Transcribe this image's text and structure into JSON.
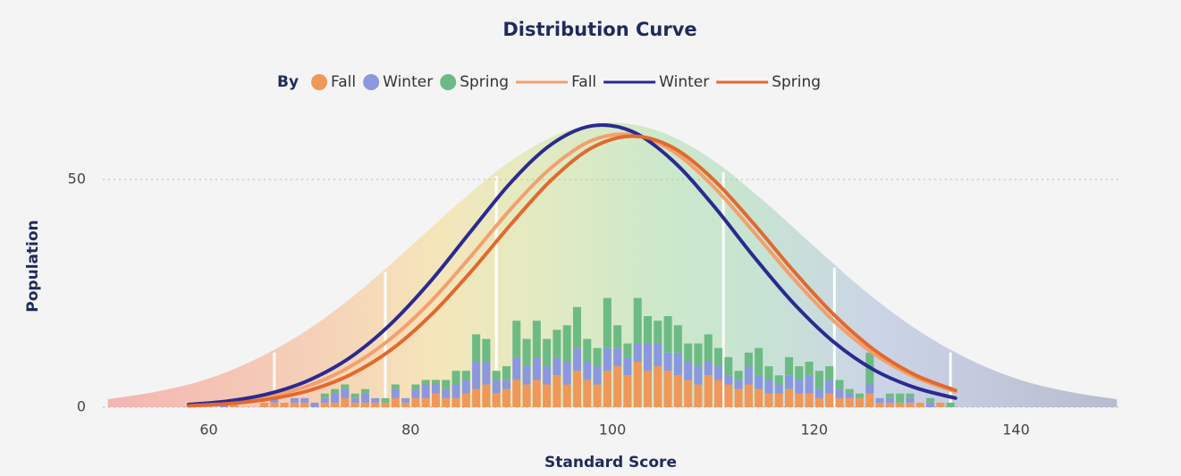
{
  "chart_data": {
    "type": "histogram",
    "title": "Distribution Curve",
    "x_label": "Standard Score",
    "y_label": "Population",
    "legend_title": "By",
    "xlim": [
      49.5,
      150.5
    ],
    "ylim": [
      0,
      65
    ],
    "xticks": [
      60,
      80,
      100,
      120,
      140
    ],
    "yticks": [
      0,
      50
    ],
    "grid": true,
    "bins": [
      58,
      59,
      60,
      61,
      62,
      63,
      64,
      65,
      66,
      67,
      68,
      69,
      70,
      71,
      72,
      73,
      74,
      75,
      76,
      77,
      78,
      79,
      80,
      81,
      82,
      83,
      84,
      85,
      86,
      87,
      88,
      89,
      90,
      91,
      92,
      93,
      94,
      95,
      96,
      97,
      98,
      99,
      100,
      101,
      102,
      103,
      104,
      105,
      106,
      107,
      108,
      109,
      110,
      111,
      112,
      113,
      114,
      115,
      116,
      117,
      118,
      119,
      120,
      121,
      122,
      123,
      124,
      125,
      126,
      127,
      128,
      129,
      130,
      131,
      132,
      133,
      134,
      135
    ],
    "series": [
      {
        "name": "Fall",
        "color": "#f0975a",
        "values": [
          0,
          0,
          0,
          0,
          1,
          0,
          0,
          1,
          1,
          1,
          1,
          1,
          0,
          1,
          1,
          2,
          1,
          1,
          1,
          1,
          2,
          1,
          2,
          2,
          3,
          2,
          2,
          3,
          4,
          5,
          3,
          4,
          6,
          5,
          6,
          5,
          7,
          5,
          8,
          6,
          5,
          8,
          9,
          7,
          10,
          8,
          9,
          8,
          7,
          6,
          5,
          7,
          6,
          5,
          4,
          5,
          4,
          3,
          3,
          4,
          3,
          3,
          2,
          3,
          2,
          2,
          2,
          3,
          1,
          1,
          1,
          1,
          1,
          0,
          1,
          0,
          0
        ]
      },
      {
        "name": "Winter",
        "color": "#8b97de",
        "values": [
          0,
          0,
          0,
          1,
          0,
          0,
          0,
          0,
          1,
          0,
          1,
          1,
          1,
          1,
          2,
          2,
          1,
          2,
          1,
          0,
          2,
          1,
          2,
          3,
          2,
          2,
          3,
          3,
          6,
          5,
          3,
          2,
          5,
          4,
          5,
          4,
          4,
          5,
          5,
          4,
          4,
          5,
          4,
          4,
          4,
          6,
          5,
          4,
          5,
          4,
          4,
          3,
          3,
          2,
          2,
          4,
          3,
          3,
          2,
          3,
          3,
          4,
          2,
          3,
          2,
          1,
          0,
          2,
          1,
          1,
          0,
          1,
          0,
          1,
          0,
          0,
          0
        ]
      },
      {
        "name": "Spring",
        "color": "#6dbb84",
        "values": [
          0,
          0,
          0,
          0,
          0,
          0,
          0,
          0,
          0,
          0,
          0,
          0,
          0,
          1,
          1,
          1,
          1,
          1,
          0,
          1,
          1,
          0,
          1,
          1,
          1,
          2,
          3,
          2,
          6,
          5,
          2,
          3,
          8,
          6,
          8,
          6,
          6,
          8,
          9,
          5,
          4,
          11,
          5,
          3,
          10,
          6,
          5,
          8,
          6,
          4,
          5,
          6,
          4,
          4,
          2,
          3,
          6,
          3,
          2,
          4,
          3,
          3,
          4,
          3,
          2,
          1,
          1,
          7,
          0,
          1,
          2,
          1,
          0,
          1,
          0,
          1,
          0
        ]
      }
    ],
    "curves": [
      {
        "name": "Fall",
        "color": "#f2a06e",
        "x": [
          58,
          62,
          66,
          70,
          74,
          78,
          82,
          86,
          90,
          94,
          98,
          102,
          106,
          110,
          114,
          118,
          122,
          126,
          130,
          134
        ],
        "values": [
          0.47,
          1.1,
          2.4,
          4.8,
          8.9,
          15.0,
          23.2,
          33.2,
          43.7,
          52.7,
          58.6,
          59.8,
          56.2,
          48.5,
          38.5,
          28.1,
          18.8,
          11.6,
          6.6,
          3.4
        ]
      },
      {
        "name": "Winter",
        "color": "#2b2a90",
        "x": [
          58,
          62,
          66,
          70,
          74,
          78,
          82,
          86,
          90,
          94,
          98,
          102,
          106,
          110,
          114,
          118,
          122,
          126,
          130,
          134
        ],
        "values": [
          0.58,
          1.37,
          3.0,
          6.0,
          10.9,
          18.2,
          27.7,
          38.7,
          49.5,
          57.8,
          61.8,
          60.5,
          54.1,
          44.3,
          33.1,
          22.7,
          14.2,
          8.1,
          4.3,
          2.0
        ]
      },
      {
        "name": "Spring",
        "color": "#e2692e",
        "x": [
          58,
          62,
          66,
          70,
          74,
          78,
          82,
          86,
          90,
          94,
          98,
          102,
          106,
          110,
          114,
          118,
          122,
          126,
          130,
          134
        ],
        "values": [
          0.32,
          0.79,
          1.8,
          3.7,
          7.1,
          12.5,
          20.2,
          29.8,
          40.3,
          50.0,
          57.0,
          59.5,
          57.0,
          50.0,
          40.3,
          29.8,
          20.2,
          12.5,
          7.1,
          3.7
        ]
      }
    ],
    "background": {
      "x": [
        50,
        55,
        60,
        65,
        70,
        75,
        80,
        85,
        90,
        95,
        100,
        105,
        110,
        115,
        120,
        125,
        130,
        135,
        140,
        145,
        150
      ],
      "values": [
        1.75,
        3.5,
        6.3,
        10.9,
        17.3,
        25.6,
        35.3,
        45.3,
        54.2,
        60.3,
        62.5,
        60.3,
        54.2,
        45.3,
        35.3,
        25.6,
        17.3,
        10.9,
        6.3,
        3.5,
        1.75
      ],
      "band_edges": [
        66.5,
        77.5,
        88.5,
        111,
        122,
        133.5
      ]
    }
  }
}
